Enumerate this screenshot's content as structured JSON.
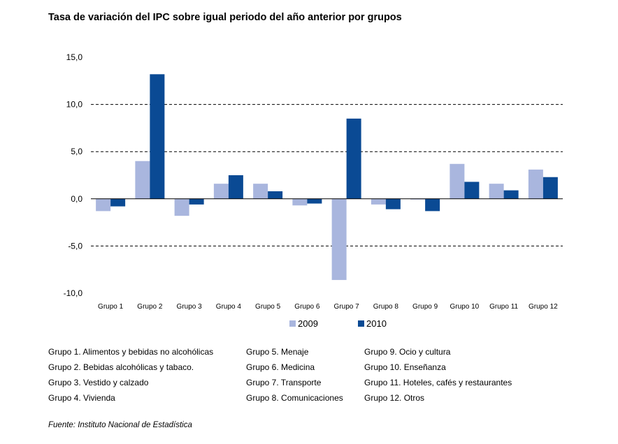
{
  "title": "Tasa de variación del IPC sobre igual periodo del año anterior por grupos",
  "colors": {
    "series_2009": "#a9b6de",
    "series_2010": "#0a4a94",
    "grid": "#000000"
  },
  "chart_data": {
    "type": "bar",
    "title": "Tasa de variación del IPC sobre igual periodo del año anterior por grupos",
    "categories": [
      "Grupo 1",
      "Grupo 2",
      "Grupo 3",
      "Grupo 4",
      "Grupo 5",
      "Grupo 6",
      "Grupo 7",
      "Grupo 8",
      "Grupo 9",
      "Grupo 10",
      "Grupo 11",
      "Grupo 12"
    ],
    "series": [
      {
        "name": "2009",
        "values": [
          -1.3,
          4.0,
          -1.8,
          1.6,
          1.6,
          -0.7,
          -8.6,
          -0.6,
          0.0,
          3.7,
          1.6,
          3.1
        ]
      },
      {
        "name": "2010",
        "values": [
          -0.8,
          13.2,
          -0.6,
          2.5,
          0.8,
          -0.5,
          8.5,
          -1.1,
          -1.3,
          1.8,
          0.9,
          2.3
        ]
      }
    ],
    "ylim": [
      -10,
      15
    ],
    "yticks": [
      "-10,0",
      "-5,0",
      "0,0",
      "5,0",
      "10,0",
      "15,0"
    ],
    "grid": "dashed horizontal",
    "legend": "bottom",
    "xlabel": "",
    "ylabel": ""
  },
  "legend": {
    "items": [
      "2009",
      "2010"
    ]
  },
  "notes": {
    "col1": [
      "Grupo 1. Alimentos y bebidas no alcohólicas",
      "Grupo 2. Bebidas alcohólicas y  tabaco.",
      "Grupo 3. Vestido y calzado",
      "Grupo 4. Vivienda"
    ],
    "col2": [
      "Grupo 5. Menaje",
      "Grupo 6. Medicina",
      "Grupo 7. Transporte",
      "Grupo 8. Comunicaciones"
    ],
    "col3": [
      "Grupo 9. Ocio y cultura",
      "Grupo 10. Enseñanza",
      "Grupo 11. Hoteles, cafés y restaurantes",
      "Grupo 12. Otros"
    ]
  },
  "source": "Fuente: Instituto Nacional de Estadística"
}
